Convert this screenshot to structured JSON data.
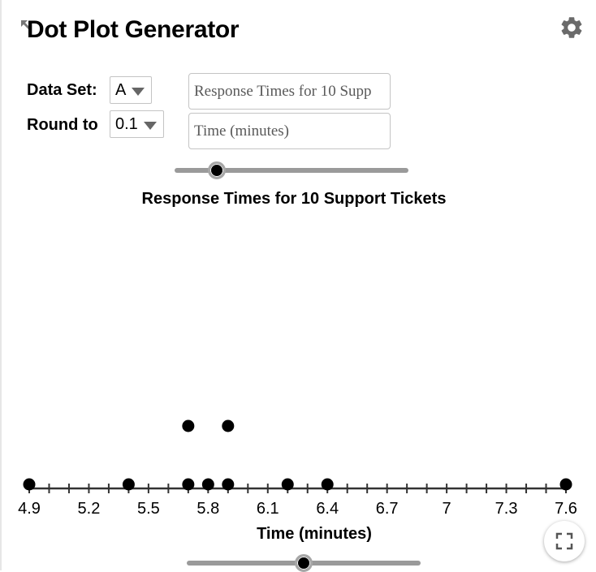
{
  "app": {
    "title": "Dot Plot Generator"
  },
  "controls": {
    "dataset_label": "Data Set:",
    "dataset_value": "A",
    "round_label": "Round to",
    "round_value": "0.1",
    "title_input_value": "Response Times for 10 Supp",
    "axis_input_value": "Time (minutes)",
    "top_slider": {
      "fraction": 0.18
    },
    "bottom_slider": {
      "fraction": 0.5
    }
  },
  "chart_data": {
    "type": "scatter",
    "title": "Response Times for 10 Support Tickets",
    "xlabel": "Time (minutes)",
    "xlim": [
      4.9,
      7.6
    ],
    "tick_step": 0.1,
    "tick_labels": [
      "4.9",
      "5.2",
      "5.5",
      "5.8",
      "6.1",
      "6.4",
      "6.7",
      "7",
      "7.3",
      "7.6"
    ],
    "values": [
      4.9,
      5.4,
      5.7,
      5.7,
      5.8,
      5.9,
      5.9,
      6.2,
      6.4,
      7.6
    ],
    "grid": false
  },
  "icons": {
    "settings": "gear-icon",
    "fullscreen": "fullscreen-icon",
    "corner": "resize-arrow-icon"
  },
  "colors": {
    "dot": "#000000",
    "axis": "#333333",
    "slider_track": "#9a9a9a"
  }
}
